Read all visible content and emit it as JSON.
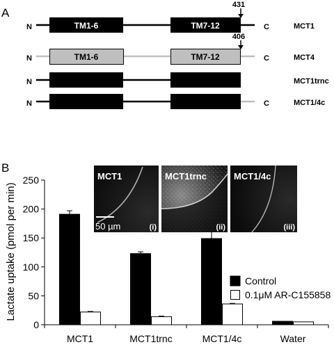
{
  "panel_a": {
    "label": "A",
    "n_terminus": "N",
    "c_terminus": "C",
    "tm1_label": "TM1-6",
    "tm2_label": "TM7-12",
    "constructs": [
      {
        "name": "MCT1",
        "residue_marker": "431"
      },
      {
        "name": "MCT4",
        "residue_marker": "406"
      },
      {
        "name": "MCT1trnc"
      },
      {
        "name": "MCT1/4c"
      }
    ],
    "colors": {
      "mct1": "#000000",
      "mct4": "#bfbfbf"
    }
  },
  "panel_b": {
    "label": "B",
    "micrographs": [
      {
        "title": "MCT1",
        "index": "(i)",
        "scale_bar": "50 µm"
      },
      {
        "title": "MCT1trnc",
        "index": "(ii)"
      },
      {
        "title": "MCT1/4c",
        "index": "(iii)"
      }
    ]
  },
  "chart_data": {
    "type": "bar",
    "ylabel": "Lactate uptake (pmol per min)",
    "xlabel": "",
    "ylim": [
      0,
      250
    ],
    "yticks": [
      "0",
      "50",
      "100",
      "150",
      "200",
      "250"
    ],
    "categories": [
      "MCT1",
      "MCT1trnc",
      "MCT1/4c",
      "Water"
    ],
    "series": [
      {
        "name": "Control",
        "values": [
          191,
          123,
          149,
          6
        ],
        "errors": [
          6,
          3,
          16,
          0
        ],
        "color": "#000000"
      },
      {
        "name": "0.1μM AR-C155858",
        "values": [
          22,
          14,
          36,
          5
        ],
        "errors": [
          1,
          1,
          1,
          0
        ],
        "color": "#ffffff"
      }
    ],
    "legend_position": "right"
  }
}
